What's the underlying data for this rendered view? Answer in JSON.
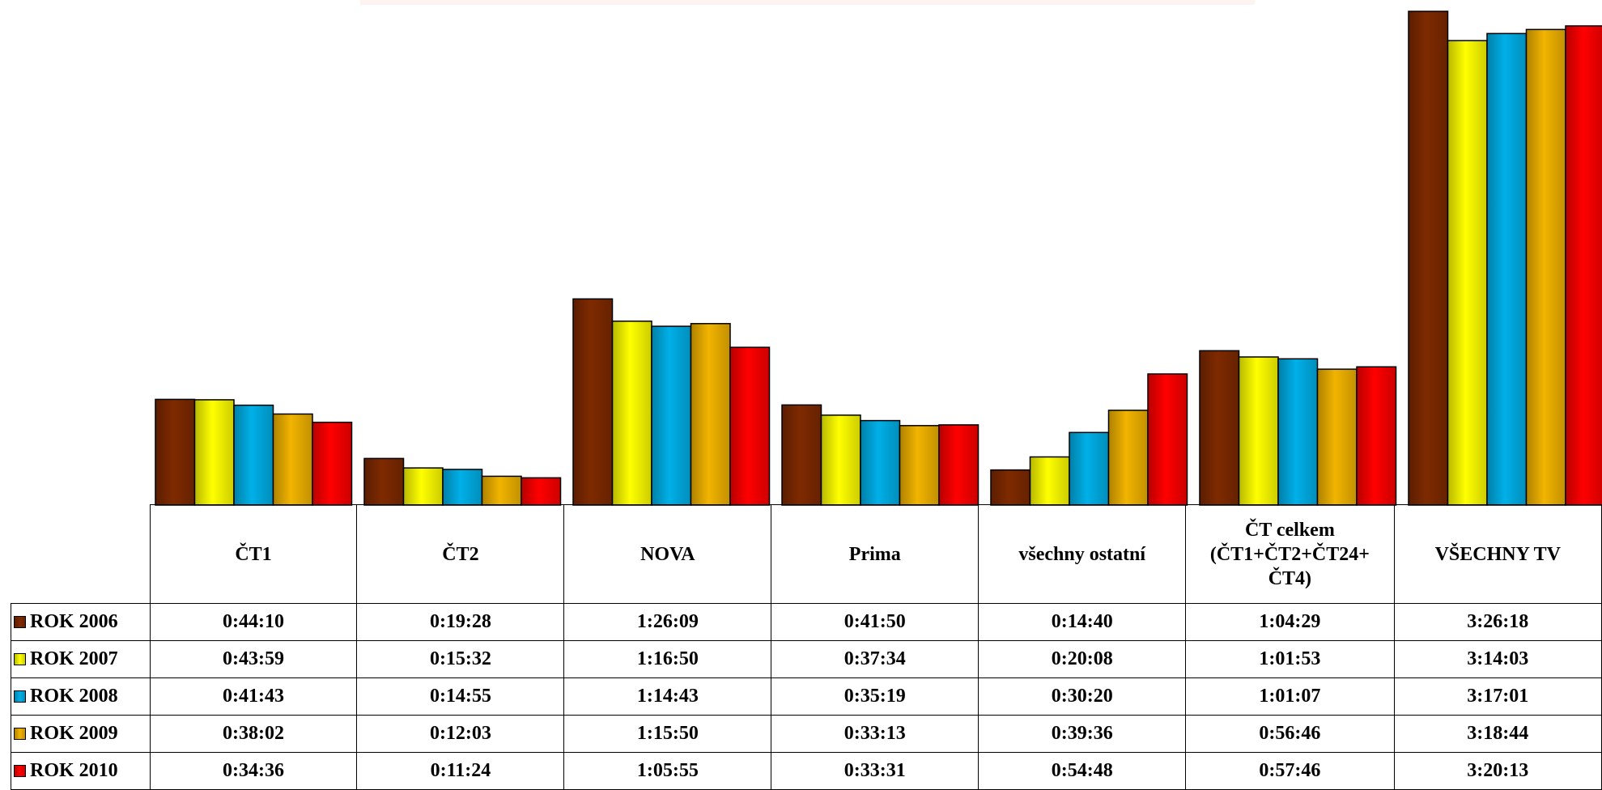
{
  "chart_data": {
    "type": "bar",
    "title": "",
    "xlabel": "",
    "ylabel": "",
    "categories": [
      "ČT1",
      "ČT2",
      "NOVA",
      "Prima",
      "všechny ostatní",
      "ČT celkem (ČT1+ČT2+ČT24+ ČT4)",
      "VŠECHNY TV"
    ],
    "ylim": [
      "0:00:00",
      "3:26:18"
    ],
    "grid": false,
    "legend": "left, in data table",
    "series": [
      {
        "name": "ROK 2006",
        "color": "#7f2a00",
        "values": [
          "0:44:10",
          "0:19:28",
          "1:26:09",
          "0:41:50",
          "0:14:40",
          "1:04:29",
          "3:26:18"
        ]
      },
      {
        "name": "ROK 2007",
        "color": "#ffff00",
        "values": [
          "0:43:59",
          "0:15:32",
          "1:16:50",
          "0:37:34",
          "0:20:08",
          "1:01:53",
          "3:14:03"
        ]
      },
      {
        "name": "ROK 2008",
        "color": "#00b0e8",
        "values": [
          "0:41:43",
          "0:14:55",
          "1:14:43",
          "0:35:19",
          "0:30:20",
          "1:01:07",
          "3:17:01"
        ]
      },
      {
        "name": "ROK 2009",
        "color": "#f2b400",
        "values": [
          "0:38:02",
          "0:12:03",
          "1:15:50",
          "0:33:13",
          "0:39:36",
          "0:56:46",
          "3:18:44"
        ]
      },
      {
        "name": "ROK 2010",
        "color": "#ff0000",
        "values": [
          "0:34:36",
          "0:11:24",
          "1:05:55",
          "0:33:31",
          "0:54:48",
          "0:57:46",
          "3:20:13"
        ]
      }
    ]
  }
}
